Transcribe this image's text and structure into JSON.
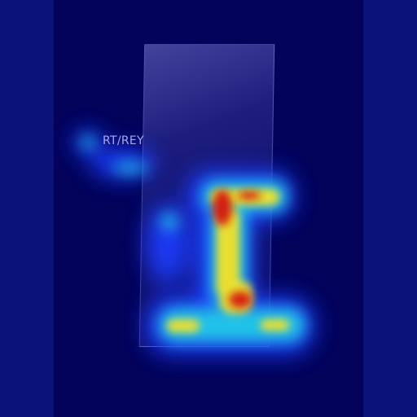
{
  "image": {
    "marker_label": "RT/REY",
    "colors": {
      "background": "#03035c",
      "side_bands": "#0b127a",
      "heat_low": "#1a3cff",
      "heat_mid": "#22d3e6",
      "heat_high": "#ffe21a",
      "heat_peak": "#d4150c"
    }
  }
}
